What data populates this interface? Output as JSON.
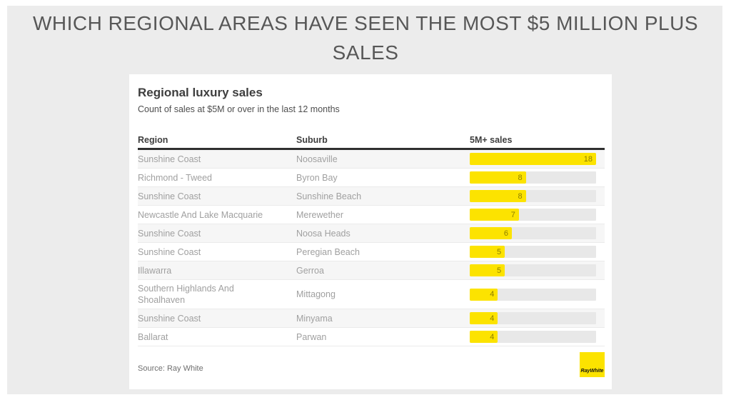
{
  "page": {
    "title": "WHICH REGIONAL AREAS HAVE SEEN THE MOST $5 MILLION PLUS SALES",
    "background_color": "#ececec"
  },
  "card": {
    "title": "Regional luxury sales",
    "subtitle": "Count of sales at $5M or over in the last 12 months",
    "source": "Source: Ray White",
    "logo_text": "RayWhite"
  },
  "chart_data": {
    "type": "bar",
    "title": "Regional luxury sales",
    "subtitle": "Count of sales at $5M or over in the last 12 months",
    "columns": [
      "Region",
      "Suburb",
      "5M+ sales"
    ],
    "rows": [
      {
        "region": "Sunshine Coast",
        "suburb": "Noosaville",
        "value": 18
      },
      {
        "region": "Richmond - Tweed",
        "suburb": "Byron Bay",
        "value": 8
      },
      {
        "region": "Sunshine Coast",
        "suburb": "Sunshine Beach",
        "value": 8
      },
      {
        "region": "Newcastle And Lake Macquarie",
        "suburb": "Merewether",
        "value": 7
      },
      {
        "region": "Sunshine Coast",
        "suburb": "Noosa Heads",
        "value": 6
      },
      {
        "region": "Sunshine Coast",
        "suburb": "Peregian Beach",
        "value": 5
      },
      {
        "region": "Illawarra",
        "suburb": "Gerroa",
        "value": 5
      },
      {
        "region": "Southern Highlands And Shoalhaven",
        "suburb": "Mittagong",
        "value": 4
      },
      {
        "region": "Sunshine Coast",
        "suburb": "Minyama",
        "value": 4
      },
      {
        "region": "Ballarat",
        "suburb": "Parwan",
        "value": 4
      }
    ],
    "max_value": 18,
    "value_range": [
      0,
      18
    ],
    "orientation": "horizontal",
    "grid": false,
    "legend": false,
    "colors": {
      "bar": "#fce300",
      "track": "#e8e8e8",
      "logo": "#fce300"
    },
    "source": "Source: Ray White"
  }
}
